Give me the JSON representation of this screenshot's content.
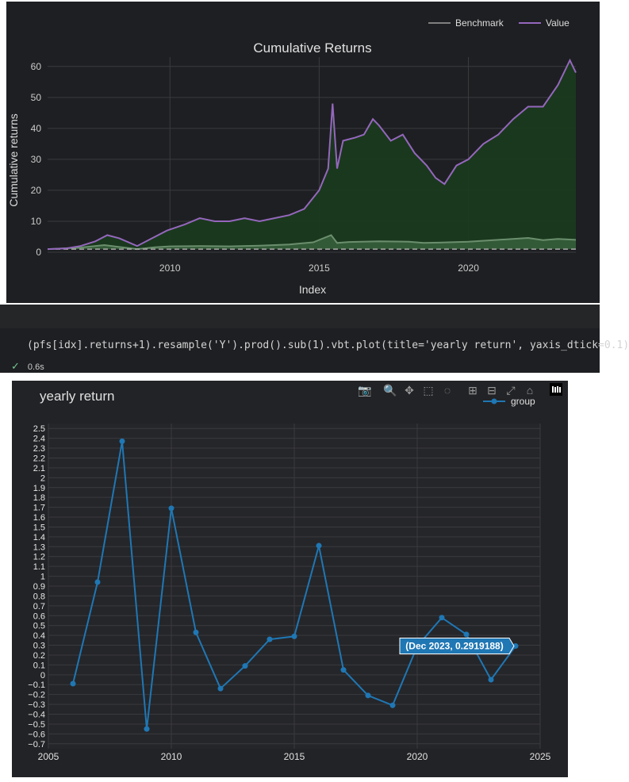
{
  "chart_data": [
    {
      "type": "area",
      "title": "Cumulative Returns",
      "xlabel": "Index",
      "ylabel": "Cumulative returns",
      "x_ticks": [
        "2010",
        "2015",
        "2020"
      ],
      "y_ticks": [
        "0",
        "10",
        "20",
        "30",
        "40",
        "50",
        "60"
      ],
      "ylim": [
        0,
        62
      ],
      "xlim": [
        2005.9,
        2023.6
      ],
      "legend_position": "top-right",
      "grid": true,
      "series": [
        {
          "name": "Benchmark",
          "color": "#7f7f7f",
          "x": [
            2005.9,
            2007.0,
            2007.8,
            2008.3,
            2008.9,
            2009.5,
            2010.0,
            2011.0,
            2012.0,
            2013.0,
            2014.0,
            2014.8,
            2015.4,
            2015.6,
            2016.0,
            2017.0,
            2018.0,
            2018.5,
            2019.0,
            2020.0,
            2021.0,
            2022.0,
            2022.5,
            2023.0,
            2023.6
          ],
          "y": [
            1.0,
            1.5,
            2.3,
            1.7,
            1.0,
            1.6,
            1.9,
            2.0,
            1.9,
            2.1,
            2.5,
            3.2,
            5.5,
            3.0,
            3.3,
            3.5,
            3.4,
            3.0,
            3.1,
            3.4,
            4.0,
            4.6,
            3.9,
            4.3,
            4.0
          ]
        },
        {
          "name": "Value",
          "color": "#9467bd",
          "x": [
            2005.9,
            2006.5,
            2007.0,
            2007.5,
            2007.9,
            2008.3,
            2008.9,
            2009.3,
            2009.9,
            2010.5,
            2011.0,
            2011.5,
            2012.0,
            2012.5,
            2013.0,
            2013.5,
            2014.0,
            2014.5,
            2015.0,
            2015.3,
            2015.45,
            2015.6,
            2015.8,
            2016.2,
            2016.5,
            2016.8,
            2017.0,
            2017.4,
            2017.8,
            2018.2,
            2018.6,
            2018.9,
            2019.2,
            2019.6,
            2020.0,
            2020.5,
            2021.0,
            2021.5,
            2022.0,
            2022.5,
            2023.0,
            2023.4,
            2023.6
          ],
          "y": [
            1.0,
            1.2,
            2.0,
            3.5,
            5.5,
            4.5,
            2.0,
            4.0,
            7.0,
            9.0,
            11.0,
            10.0,
            10.0,
            11.0,
            10.0,
            11.0,
            12.0,
            14.0,
            20.0,
            27.0,
            48.0,
            27.0,
            36.0,
            37.0,
            38.0,
            43.0,
            41.0,
            36.0,
            38.0,
            32.0,
            28.0,
            24.0,
            22.0,
            28.0,
            30.0,
            35.0,
            38.0,
            43.0,
            47.0,
            47.0,
            54.0,
            62.0,
            58.0
          ]
        },
        {
          "name": "",
          "color": "#aaaaaa",
          "dash": true,
          "x": [
            2005.9,
            2023.6
          ],
          "y": [
            1,
            1
          ]
        }
      ]
    },
    {
      "type": "line",
      "title": "yearly return",
      "xlabel": "",
      "ylabel": "",
      "legend_position": "top-right",
      "grid": true,
      "xlim": [
        2005,
        2025
      ],
      "ylim": [
        -0.75,
        2.55
      ],
      "x_ticks": [
        "2005",
        "2010",
        "2015",
        "2020",
        "2025"
      ],
      "y_ticks": [
        "2.5",
        "2.4",
        "2.3",
        "2.2",
        "2.1",
        "2",
        "1.9",
        "1.8",
        "1.7",
        "1.6",
        "1.5",
        "1.4",
        "1.3",
        "1.2",
        "1.1",
        "1",
        "0.9",
        "0.8",
        "0.7",
        "0.6",
        "0.5",
        "0.4",
        "0.3",
        "0.2",
        "0.1",
        "0",
        "−0.1",
        "−0.2",
        "−0.3",
        "−0.4",
        "−0.5",
        "−0.6",
        "−0.7"
      ],
      "series": [
        {
          "name": "group",
          "color": "#1f77b4",
          "x": [
            2006,
            2007,
            2008,
            2009,
            2010,
            2011,
            2012,
            2013,
            2014,
            2015,
            2016,
            2017,
            2018,
            2019,
            2020,
            2021,
            2022,
            2023,
            2024
          ],
          "y": [
            -0.09,
            0.94,
            2.37,
            -0.55,
            1.69,
            0.43,
            -0.14,
            0.09,
            0.36,
            0.39,
            1.31,
            0.05,
            -0.21,
            -0.31,
            0.29,
            0.58,
            0.41,
            -0.05,
            0.2919188
          ]
        }
      ],
      "hover_label": "(Dec 2023, 0.2919188)"
    }
  ],
  "code": {
    "text": "(pfs[idx].returns+1).resample('Y').prod().sub(1).vbt.plot(title='yearly return', yaxis_dtick=0.1)",
    "status": "0.6s",
    "check_icon": "check-icon"
  },
  "toolbar": {
    "icons": [
      "camera-icon",
      "zoom-icon",
      "pan-icon",
      "box-select-icon",
      "lasso-select-icon",
      "zoom-in-icon",
      "zoom-out-icon",
      "autoscale-icon",
      "reset-axes-icon",
      "plotly-logo-icon"
    ]
  },
  "colors": {
    "background": "#1e1f22",
    "plot_bg": "#222326",
    "grid": "#3a3b3e",
    "value_fill": "#1a3a1e",
    "benchmark_fill": "#3f6a43"
  }
}
